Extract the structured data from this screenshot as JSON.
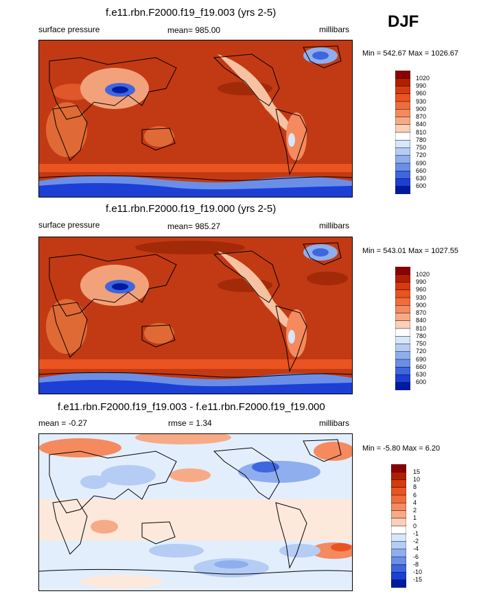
{
  "season": "DJF",
  "panels": [
    {
      "title": "f.e11.rbn.F2000.f19_f19.003 (yrs 2-5)",
      "left": "surface pressure",
      "center": "mean= 985.00",
      "right": "millibars",
      "minmax": "Min = 542.67 Max = 1026.67"
    },
    {
      "title": "f.e11.rbn.F2000.f19_f19.000 (yrs 2-5)",
      "left": "surface pressure",
      "center": "mean= 985.27",
      "right": "millibars",
      "minmax": "Min = 543.01 Max = 1027.55"
    },
    {
      "title": "f.e11.rbn.F2000.f19_f19.003 - f.e11.rbn.F2000.f19_f19.000",
      "left": "mean =  -0.27",
      "center": "rmse =   1.34",
      "right": "millibars",
      "minmax": "Min =  -5.80 Max =   6.20"
    }
  ],
  "colorbars": {
    "pressure": {
      "labels": [
        "1020",
        "990",
        "960",
        "930",
        "900",
        "870",
        "840",
        "810",
        "780",
        "750",
        "720",
        "690",
        "660",
        "630",
        "600"
      ],
      "colors": [
        "#8b0000",
        "#b21f00",
        "#d63a10",
        "#e95420",
        "#f06c3c",
        "#f48a5e",
        "#f7aa86",
        "#fbd0b8",
        "#ffffff",
        "#d6e6fb",
        "#b5ccf5",
        "#8eaeee",
        "#6b8fe6",
        "#3f66de",
        "#1c3fd6",
        "#001a9f"
      ]
    },
    "difference": {
      "labels": [
        "15",
        "10",
        "8",
        "6",
        "4",
        "2",
        "1",
        "0",
        "-1",
        "-2",
        "-4",
        "-6",
        "-8",
        "-10",
        "-15"
      ],
      "colors": [
        "#8b0000",
        "#b21f00",
        "#d63a10",
        "#e95420",
        "#f06c3c",
        "#f48a5e",
        "#f7aa86",
        "#fbd0b8",
        "#ffffff",
        "#d6e6fb",
        "#b5ccf5",
        "#8eaeee",
        "#6b8fe6",
        "#3f66de",
        "#1c3fd6",
        "#001a9f"
      ]
    }
  }
}
